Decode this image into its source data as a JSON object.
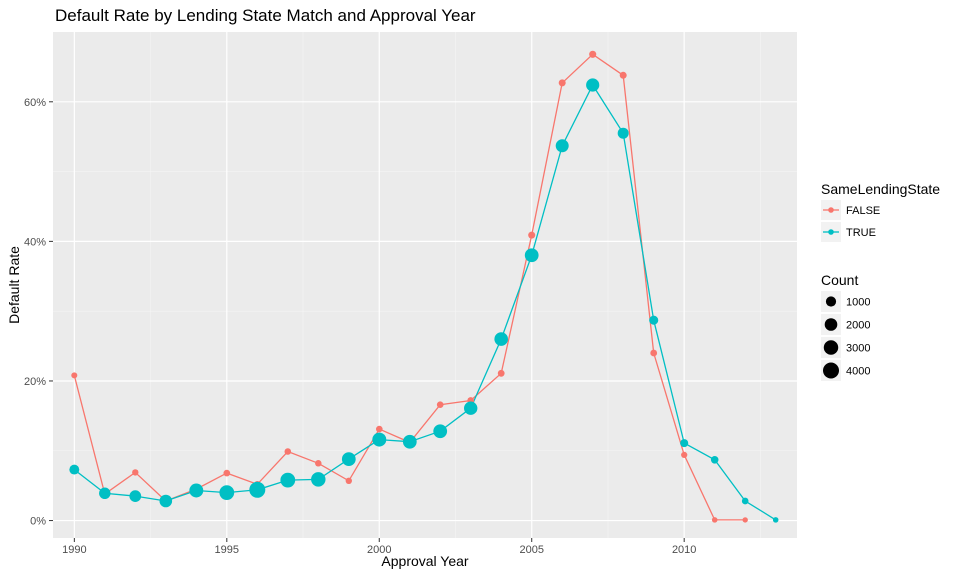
{
  "chart_data": {
    "type": "line",
    "title": "Default Rate by Lending State Match and Approval Year",
    "xlabel": "Approval Year",
    "ylabel": "Default Rate",
    "xlim": [
      1989.3,
      2013.7
    ],
    "ylim": [
      -0.025,
      0.7
    ],
    "x_ticks": [
      1990,
      1995,
      2000,
      2005,
      2010
    ],
    "x_tick_labels": [
      "1990",
      "1995",
      "2000",
      "2005",
      "2010"
    ],
    "y_ticks": [
      0,
      0.2,
      0.4,
      0.6
    ],
    "y_tick_labels": [
      "0%",
      "20%",
      "40%",
      "60%"
    ],
    "grid": true,
    "legend_placement": "right",
    "color_legend": {
      "title": "SameLendingState",
      "entries": [
        "FALSE",
        "TRUE"
      ]
    },
    "size_legend": {
      "title": "Count",
      "entries": [
        {
          "label": "1000",
          "value": 1000
        },
        {
          "label": "2000",
          "value": 2000
        },
        {
          "label": "3000",
          "value": 3000
        },
        {
          "label": "4000",
          "value": 4000
        }
      ]
    },
    "series": [
      {
        "name": "FALSE",
        "color": "#F8766D",
        "x": [
          1990,
          1991,
          1992,
          1993,
          1994,
          1995,
          1996,
          1997,
          1998,
          1999,
          2000,
          2001,
          2002,
          2003,
          2004,
          2005,
          2006,
          2007,
          2008,
          2009,
          2010,
          2011,
          2012
        ],
        "values": [
          0.208,
          0.038,
          0.069,
          0.028,
          0.045,
          0.068,
          0.052,
          0.099,
          0.082,
          0.057,
          0.131,
          0.112,
          0.166,
          0.172,
          0.211,
          0.409,
          0.627,
          0.668,
          0.638,
          0.24,
          0.094,
          0.001,
          0.001
        ],
        "count": [
          80,
          150,
          120,
          110,
          130,
          150,
          140,
          140,
          130,
          120,
          140,
          130,
          150,
          160,
          170,
          200,
          200,
          220,
          200,
          170,
          100,
          40,
          30
        ]
      },
      {
        "name": "TRUE",
        "color": "#00BFC4",
        "x": [
          1990,
          1991,
          1992,
          1993,
          1994,
          1995,
          1996,
          1997,
          1998,
          1999,
          2000,
          2001,
          2002,
          2003,
          2004,
          2005,
          2006,
          2007,
          2008,
          2009,
          2010,
          2011,
          2012,
          2013
        ],
        "values": [
          0.073,
          0.039,
          0.035,
          0.028,
          0.043,
          0.04,
          0.044,
          0.058,
          0.059,
          0.088,
          0.116,
          0.113,
          0.128,
          0.161,
          0.26,
          0.38,
          0.537,
          0.624,
          0.555,
          0.287,
          0.111,
          0.087,
          0.028,
          0.001
        ],
        "count": [
          900,
          1500,
          1600,
          2000,
          2700,
          3200,
          4000,
          3200,
          3000,
          2600,
          2700,
          2600,
          2600,
          2400,
          2500,
          2600,
          2200,
          2300,
          1300,
          650,
          400,
          300,
          150,
          40
        ]
      }
    ]
  }
}
